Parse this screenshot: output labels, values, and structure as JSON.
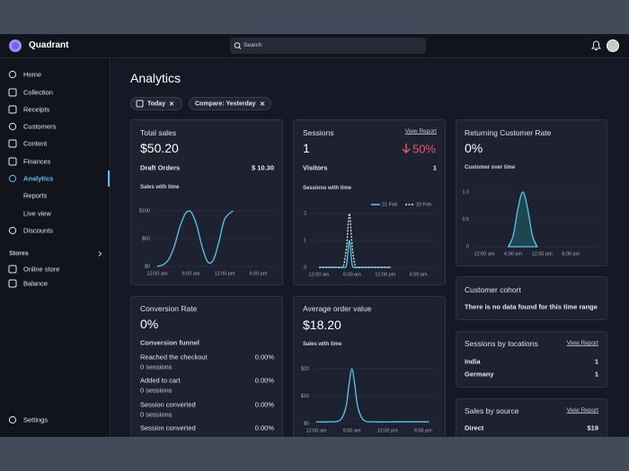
{
  "header": {
    "brand": "Quadrant",
    "search": "Search"
  },
  "sidebar": {
    "nav": [
      "Home",
      "Collection",
      "Receipts",
      "Customers",
      "Content",
      "Finances",
      "Analytics",
      "Reports",
      "Live view",
      "Discounts"
    ],
    "active": "Analytics",
    "stores_heading": "Stores",
    "stores": [
      "Online store",
      "Balance"
    ],
    "settings": "Settings"
  },
  "page": {
    "title": "Analytics",
    "filters": [
      "Today",
      "Compare: Yesterday"
    ]
  },
  "total_sales": {
    "title": "Total sales",
    "value": "$50.20",
    "draft_label": "Draft Orders",
    "draft_value": "$ 10.30",
    "chart": {
      "type": "line",
      "title": "Sales with time",
      "xlim": [
        0,
        20
      ],
      "ylim": [
        0,
        100
      ],
      "xticks": [
        {
          "value": 0,
          "label": "12:00 am"
        },
        {
          "value": 6,
          "label": "6:00 am"
        },
        {
          "value": 12,
          "label": "12:00 pm"
        },
        {
          "value": 18,
          "label": "6:00 pm"
        }
      ],
      "yticks": [
        {
          "value": 0,
          "label": "$0"
        },
        {
          "value": 50,
          "label": "$50"
        },
        {
          "value": 100,
          "label": "$100"
        }
      ],
      "series": [
        {
          "color": "#56c7ea",
          "x": [
            0,
            1,
            2,
            3,
            4,
            5,
            6,
            7,
            8,
            9,
            10,
            11,
            12,
            13.5
          ],
          "values": [
            0,
            3,
            12,
            35,
            70,
            95,
            98,
            75,
            35,
            8,
            12,
            45,
            85,
            100
          ]
        }
      ]
    }
  },
  "sessions": {
    "title": "Sessions",
    "link": "View Report",
    "value": "1",
    "change": "50%",
    "visitors_label": "Visitors",
    "visitors_value": "1",
    "chart": {
      "type": "line",
      "title": "Sessions with time",
      "xlim": [
        0,
        20
      ],
      "ylim": [
        0,
        2
      ],
      "xticks": [
        {
          "value": 0,
          "label": "12:00 am"
        },
        {
          "value": 6,
          "label": "6:00 am"
        },
        {
          "value": 12,
          "label": "12:00 pm"
        },
        {
          "value": 18,
          "label": "6:00 pm"
        }
      ],
      "yticks": [
        0,
        1,
        2
      ],
      "series": [
        {
          "name": "21 Feb",
          "color": "#56c7ea",
          "dash": false,
          "x": [
            0,
            1,
            2,
            3,
            4,
            4.5,
            5,
            5.5,
            6,
            6.5,
            7,
            8,
            9,
            10,
            11,
            12,
            13
          ],
          "values": [
            0,
            0,
            0,
            0,
            0,
            0,
            0.1,
            1,
            0.1,
            0,
            0,
            0,
            0,
            0,
            0,
            0,
            0
          ]
        },
        {
          "name": "20 Feb",
          "color": "#d7ecf6",
          "dash": true,
          "x": [
            0,
            1,
            2,
            3,
            4,
            4.5,
            5,
            5.5,
            6,
            6.5,
            7,
            8,
            9,
            10,
            11,
            12,
            13
          ],
          "values": [
            0,
            0,
            0,
            0,
            0,
            0.1,
            0.8,
            2,
            0.8,
            0.1,
            0,
            0,
            0,
            0,
            0,
            0,
            0
          ]
        }
      ]
    }
  },
  "returning": {
    "title": "Returning Customer Rate",
    "value": "0%",
    "chart": {
      "type": "area",
      "title": "Customer over time",
      "xlim": [
        0,
        20
      ],
      "ylim": [
        0,
        1
      ],
      "xticks": [
        {
          "value": 0,
          "label": "12:00 am"
        },
        {
          "value": 6,
          "label": "6:00 am"
        },
        {
          "value": 12,
          "label": "12:00 pm"
        },
        {
          "value": 18,
          "label": "6:00 pm"
        }
      ],
      "yticks": [
        0,
        0.5,
        {
          "value": 1,
          "label": "1.0"
        }
      ],
      "series": [
        {
          "color": "#56c7ea",
          "fill": "#1c4650",
          "x": [
            5,
            6,
            7,
            8,
            9,
            10,
            11
          ],
          "values": [
            0,
            0.2,
            0.7,
            1,
            0.7,
            0.2,
            0
          ]
        }
      ]
    }
  },
  "conversion": {
    "title": "Conversion Rate",
    "value": "0%",
    "funnel_title": "Conversion funnel",
    "steps": [
      {
        "label": "Reached the checkout",
        "pct": "0.00%",
        "sessions": "0 sessions"
      },
      {
        "label": "Added to cart",
        "pct": "0.00%",
        "sessions": "0 sessions"
      },
      {
        "label": "Session converted",
        "pct": "0.00%",
        "sessions": "0 sessions"
      },
      {
        "label": "Session converted",
        "pct": "0.00%"
      }
    ]
  },
  "aov": {
    "title": "Average order value",
    "value": "$18.20",
    "chart": {
      "type": "line",
      "title": "Sales with time",
      "xlim": [
        0,
        20
      ],
      "ylim": [
        0,
        20
      ],
      "xticks": [
        {
          "value": 0,
          "label": "12:00 am"
        },
        {
          "value": 6,
          "label": "6:00 am"
        },
        {
          "value": 12,
          "label": "12:00 pm"
        },
        {
          "value": 18,
          "label": "6:00 pm"
        }
      ],
      "yticks": [
        {
          "value": 0,
          "label": "$0"
        },
        {
          "value": 10,
          "label": "$10"
        },
        {
          "value": 20,
          "label": "$20"
        }
      ],
      "series": [
        {
          "color": "#56c7ea",
          "x": [
            0,
            2,
            4,
            5,
            5.5,
            6,
            6.5,
            7,
            8,
            10,
            13,
            16,
            19
          ],
          "values": [
            0.6,
            0.6,
            1.2,
            6,
            14,
            20,
            14,
            6,
            1.2,
            0.6,
            0.6,
            0.6,
            0.6
          ]
        }
      ]
    }
  },
  "cohort": {
    "title": "Customer cohort",
    "message": "There is no data found for this time range"
  },
  "locations": {
    "title": "Sessions by locations",
    "link": "View Report",
    "rows": [
      [
        "India",
        "1"
      ],
      [
        "Germany",
        "1"
      ]
    ]
  },
  "source": {
    "title": "Sales by source",
    "link": "View Report",
    "rows": [
      [
        "Direct",
        "$19"
      ]
    ]
  }
}
